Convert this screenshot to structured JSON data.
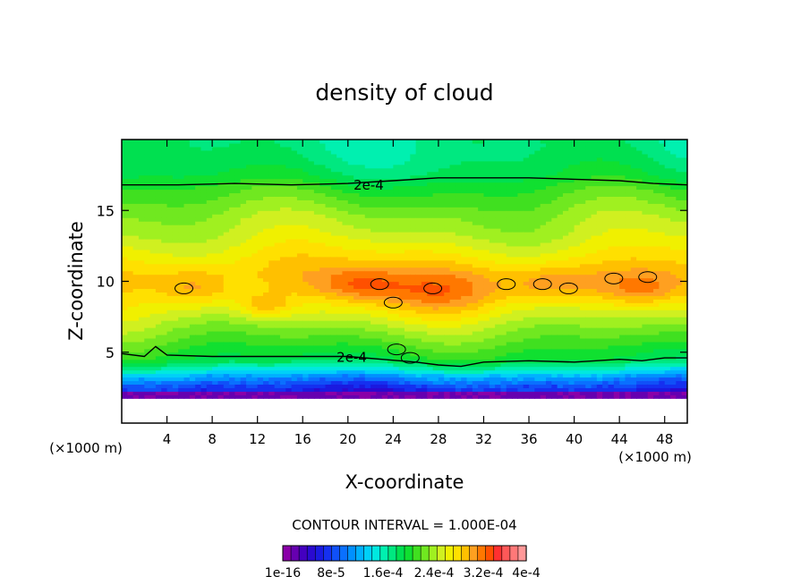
{
  "chart_data": {
    "type": "heatmap",
    "title": "density of cloud",
    "xlabel": "X-coordinate",
    "ylabel": "Z-coordinate",
    "x_unit_left": "(×1000 m)",
    "x_unit_right": "(×1000 m)",
    "xlim": [
      0,
      50
    ],
    "ylim": [
      0,
      20
    ],
    "x_ticks": [
      4,
      8,
      12,
      16,
      20,
      24,
      28,
      32,
      36,
      40,
      44,
      48
    ],
    "y_ticks": [
      5,
      10,
      15
    ],
    "contour_interval_text": "CONTOUR INTERVAL = 1.000E-04",
    "colorbar": {
      "colors": [
        "#8a00a8",
        "#6600b0",
        "#4400c0",
        "#2a0ad0",
        "#1a1ae0",
        "#1530f0",
        "#1050f8",
        "#0a70ff",
        "#0090ff",
        "#00b0ff",
        "#00d0f8",
        "#00e8e0",
        "#00f0b0",
        "#00e880",
        "#00e050",
        "#10e030",
        "#40e020",
        "#70e820",
        "#a0f020",
        "#d0f020",
        "#f0f000",
        "#ffe000",
        "#ffc000",
        "#ffa020",
        "#ff7800",
        "#ff5000",
        "#ff3030",
        "#ff5858",
        "#ff7878",
        "#ff9898"
      ],
      "labels": [
        "1e-16",
        "8e-5",
        "1.6e-4",
        "2.4e-4",
        "3.2e-4",
        "4e-4"
      ],
      "min": 1e-16,
      "max": 0.0004
    },
    "contour_labels": [
      {
        "text": "2e-4",
        "x": 20.5,
        "y": 16.85
      },
      {
        "text": "2e-4",
        "x": 19.0,
        "y": 4.7
      }
    ],
    "contours_2e-4": {
      "upper": [
        [
          0,
          16.8
        ],
        [
          5,
          16.8
        ],
        [
          10,
          16.9
        ],
        [
          15,
          16.8
        ],
        [
          20,
          16.9
        ],
        [
          24,
          17.1
        ],
        [
          28,
          17.3
        ],
        [
          32,
          17.3
        ],
        [
          36,
          17.3
        ],
        [
          40,
          17.2
        ],
        [
          44,
          17.1
        ],
        [
          47,
          16.9
        ],
        [
          50,
          16.8
        ]
      ],
      "lower": [
        [
          0,
          4.9
        ],
        [
          2,
          4.7
        ],
        [
          3,
          5.4
        ],
        [
          4,
          4.8
        ],
        [
          8,
          4.7
        ],
        [
          12,
          4.7
        ],
        [
          16,
          4.7
        ],
        [
          20,
          4.7
        ],
        [
          23,
          4.5
        ],
        [
          26,
          4.3
        ],
        [
          28,
          4.1
        ],
        [
          30,
          4.0
        ],
        [
          32,
          4.3
        ],
        [
          36,
          4.4
        ],
        [
          40,
          4.3
        ],
        [
          44,
          4.5
        ],
        [
          46,
          4.4
        ],
        [
          48,
          4.6
        ],
        [
          50,
          4.6
        ]
      ]
    },
    "density_profile": {
      "z": [
        1.5,
        2.5,
        3.5,
        4.5,
        5.5,
        6.5,
        7.5,
        8.5,
        9.5,
        10.5,
        11.5,
        12.5,
        13.5,
        14.5,
        15.5,
        16.5,
        17.5,
        18.5,
        19.5
      ],
      "value": [
        5e-05,
        8e-05,
        0.00014,
        0.0002,
        0.00022,
        0.00024,
        0.00026,
        0.000275,
        0.00029,
        0.000295,
        0.000285,
        0.00027,
        0.000255,
        0.000245,
        0.00023,
        0.000215,
        0.000195,
        0.000185,
        0.00018
      ]
    }
  }
}
